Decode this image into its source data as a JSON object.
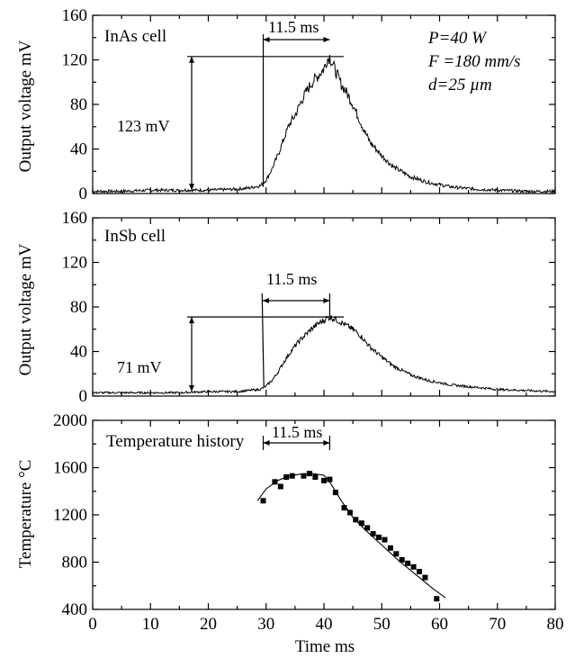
{
  "chart_data": [
    {
      "type": "line",
      "panel": "top",
      "label": "InAs cell",
      "ylabel": "Output voltage  mV",
      "ylim": [
        0,
        160
      ],
      "yticks": [
        0,
        40,
        80,
        120,
        160
      ],
      "xlim": [
        0,
        80
      ],
      "params": {
        "p": "P=40 W",
        "f": "F =180 mm/s",
        "d": "d=25 µm"
      },
      "peak_annotation": "123 mV",
      "width_annotation": "11.5 ms",
      "series": [
        {
          "x": [
            0,
            5,
            10,
            15,
            20,
            25,
            27,
            29,
            30,
            31,
            32,
            33,
            34,
            35,
            36,
            37,
            38,
            39,
            40,
            40.5,
            41,
            42,
            43,
            44,
            45,
            46,
            47,
            48,
            50,
            52,
            55,
            58,
            62,
            66,
            70,
            75,
            80
          ],
          "y": [
            2,
            2,
            3,
            3,
            3,
            4,
            5,
            7,
            12,
            22,
            34,
            48,
            62,
            70,
            82,
            92,
            100,
            106,
            112,
            120,
            123,
            110,
            98,
            90,
            80,
            68,
            56,
            46,
            34,
            24,
            15,
            10,
            6,
            4,
            3,
            2,
            2
          ]
        }
      ]
    },
    {
      "type": "line",
      "panel": "middle",
      "label": "InSb cell",
      "ylabel": "Output voltage  mV",
      "ylim": [
        0,
        160
      ],
      "yticks": [
        0,
        40,
        80,
        120,
        160
      ],
      "xlim": [
        0,
        80
      ],
      "peak_annotation": "71 mV",
      "width_annotation": "11.5 ms",
      "series": [
        {
          "x": [
            0,
            5,
            10,
            15,
            20,
            25,
            27,
            29,
            30,
            31,
            32,
            33,
            34,
            35,
            36,
            37,
            38,
            39,
            40,
            40.5,
            41,
            42,
            43,
            44,
            45,
            46,
            47,
            48,
            50,
            52,
            55,
            58,
            62,
            66,
            70,
            75,
            80
          ],
          "y": [
            3,
            3,
            3,
            3,
            4,
            4,
            5,
            6,
            9,
            14,
            21,
            30,
            38,
            45,
            51,
            56,
            61,
            65,
            68,
            70,
            71,
            69,
            66,
            63,
            60,
            56,
            50,
            44,
            35,
            27,
            19,
            14,
            10,
            8,
            6,
            5,
            4
          ]
        }
      ]
    },
    {
      "type": "scatter",
      "panel": "bottom",
      "label": "Temperature history",
      "ylabel": "Temperature  °C",
      "xlabel": "Time   ms",
      "ylim": [
        400,
        2000
      ],
      "yticks": [
        400,
        800,
        1200,
        1600,
        2000
      ],
      "xlim": [
        0,
        80
      ],
      "xticks": [
        0,
        10,
        20,
        30,
        40,
        50,
        60,
        70,
        80
      ],
      "width_annotation": "11.5 ms",
      "series": [
        {
          "x": [
            29.5,
            31.5,
            32.5,
            33.5,
            34.5,
            36.5,
            37.5,
            38.5,
            40,
            41,
            42,
            43.5,
            44.5,
            45.5,
            46.5,
            47.5,
            48.5,
            49.5,
            50.5,
            51.5,
            52.5,
            53.5,
            54.5,
            55.5,
            56.5,
            57.5,
            59.5
          ],
          "y": [
            1320,
            1480,
            1440,
            1520,
            1530,
            1530,
            1550,
            1520,
            1490,
            1500,
            1390,
            1260,
            1220,
            1160,
            1130,
            1090,
            1040,
            1010,
            990,
            920,
            870,
            820,
            790,
            760,
            720,
            670,
            490
          ]
        },
        {
          "type": "fit",
          "x": [
            28.5,
            30,
            32,
            34,
            36,
            38,
            40,
            41,
            43,
            45,
            47,
            49,
            51,
            53,
            55,
            57,
            59,
            61
          ],
          "y": [
            1320,
            1420,
            1490,
            1530,
            1545,
            1550,
            1535,
            1480,
            1320,
            1180,
            1080,
            990,
            900,
            810,
            730,
            650,
            570,
            500
          ]
        }
      ]
    }
  ]
}
